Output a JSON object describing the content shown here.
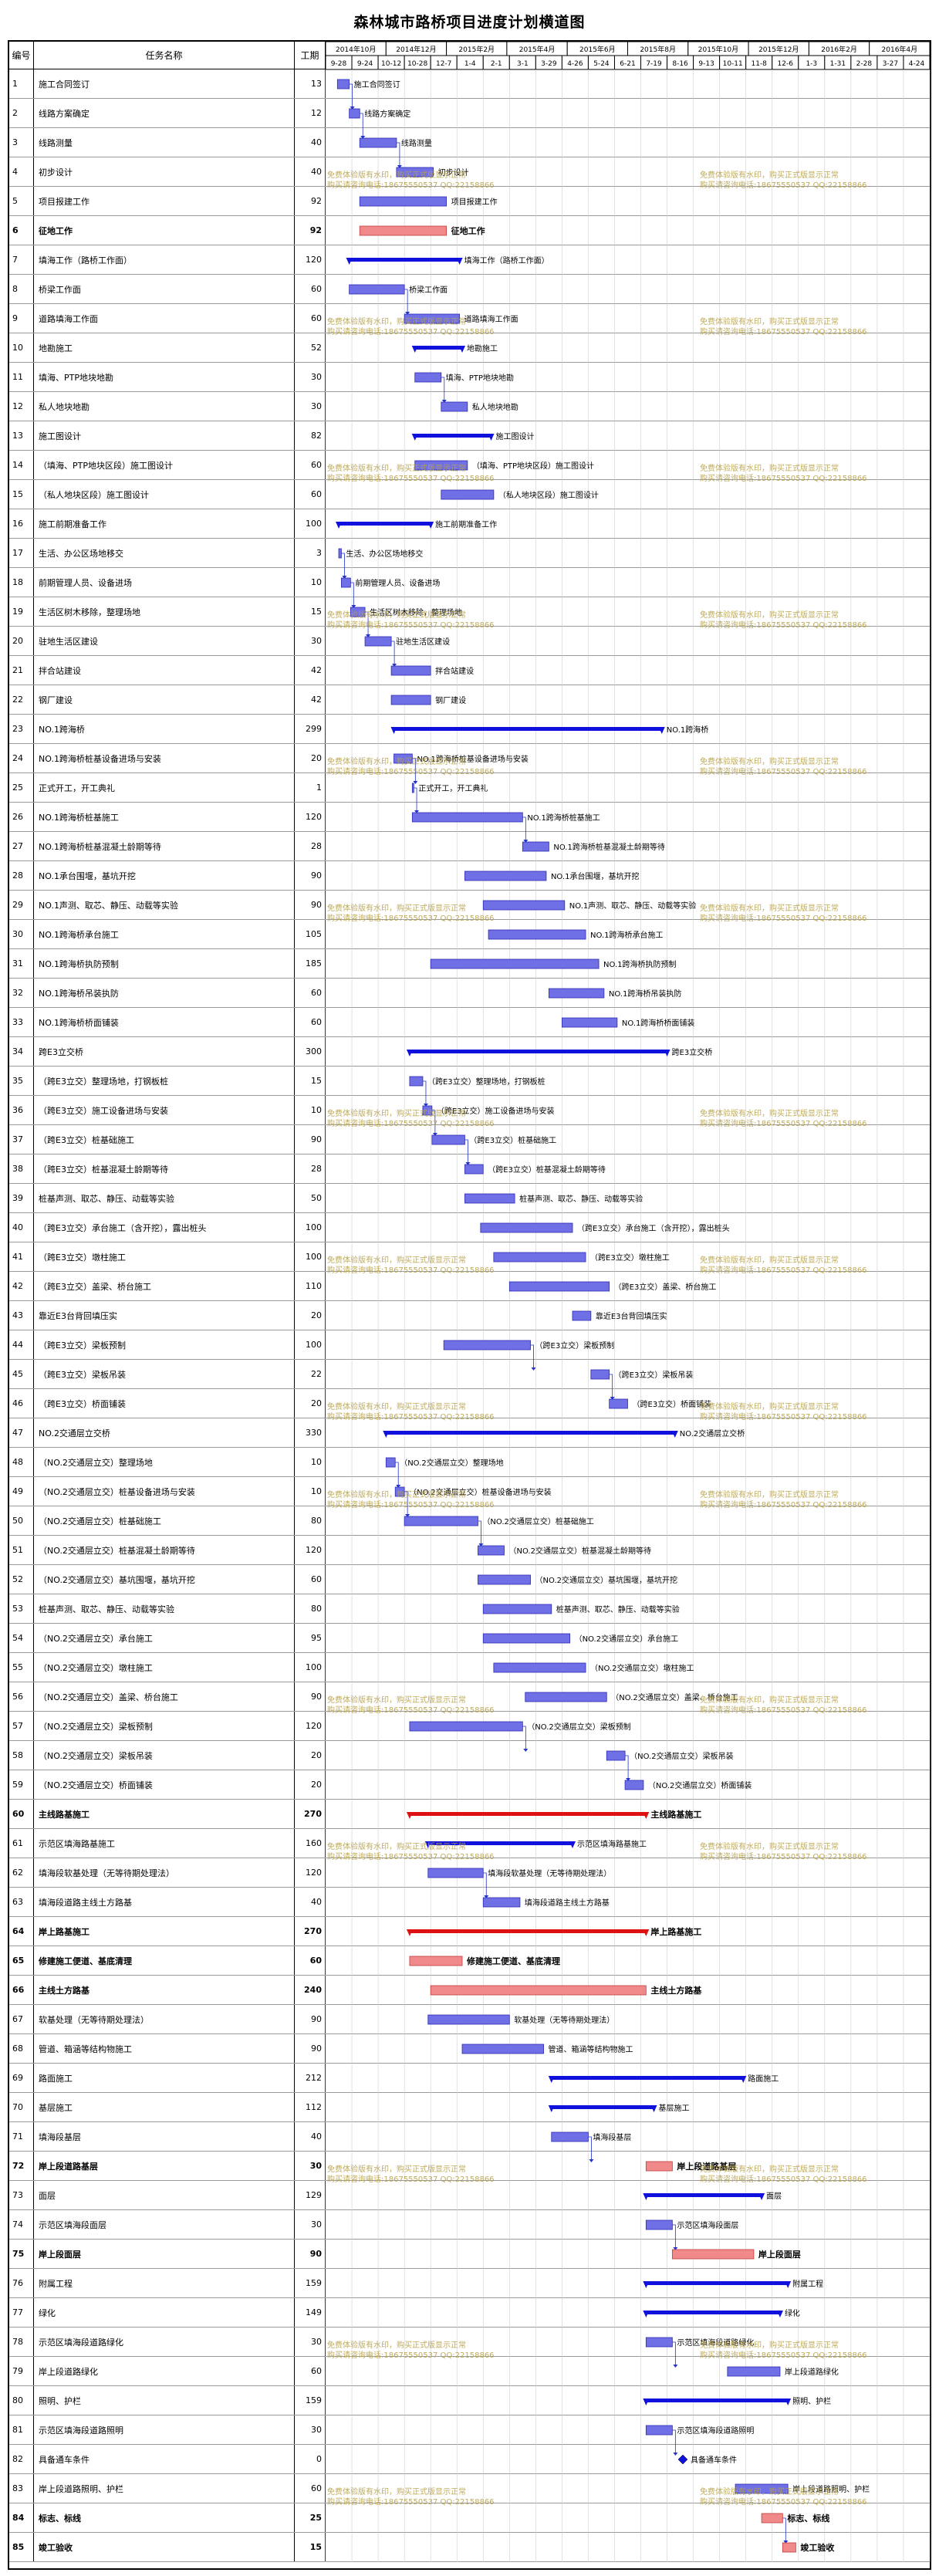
{
  "title": "森林城市路桥项目进度计划横道图",
  "headers": {
    "id": "编号",
    "name": "任务名称",
    "duration": "工期"
  },
  "months": [
    "2014年10月",
    "2014年12月",
    "2015年2月",
    "2015年4月",
    "2015年6月",
    "2015年8月",
    "2015年10月",
    "2015年12月",
    "2016年2月",
    "2016年4月"
  ],
  "weeks": [
    "9-28",
    "9-24",
    "10-12",
    "10-28",
    "12-7",
    "1-4",
    "2-1",
    "3-1",
    "3-29",
    "4-26",
    "5-24",
    "6-21",
    "7-19",
    "8-16",
    "9-13",
    "10-11",
    "11-8",
    "12-6",
    "1-3",
    "1-31",
    "2-28",
    "3-27",
    "4-24"
  ],
  "watermark_lines": [
    "免费体验版有水印，购买正式版显示正常",
    "购买请咨询电话:18675550537 QQ:22158866"
  ],
  "colors": {
    "normal": "#6f6fe6",
    "critical": "#f08a8a",
    "summary": "#1111dd",
    "summary_critical": "#dd1111",
    "link": "#2233cc"
  },
  "tasks": [
    {
      "id": "1",
      "name": "施工合同签订",
      "dur": "13",
      "s": 0.45,
      "e": 0.9,
      "label": "施工合同签订"
    },
    {
      "id": "2",
      "name": "线路方案确定",
      "dur": "12",
      "s": 0.9,
      "e": 1.3,
      "label": "线路方案确定"
    },
    {
      "id": "3",
      "name": "线路测量",
      "dur": "40",
      "s": 1.3,
      "e": 2.7,
      "label": "线路测量"
    },
    {
      "id": "4",
      "name": "初步设计",
      "dur": "40",
      "s": 2.7,
      "e": 4.1,
      "label": "初步设计"
    },
    {
      "id": "5",
      "name": "项目报建工作",
      "dur": "92",
      "s": 1.3,
      "e": 4.6,
      "label": "项目报建工作"
    },
    {
      "id": "6",
      "name": "征地工作",
      "dur": "92",
      "s": 1.3,
      "e": 4.6,
      "label": "征地工作",
      "bold": true,
      "crit": true
    },
    {
      "id": "7",
      "name": "填海工作（路桥工作面）",
      "dur": "120",
      "s": 0.9,
      "e": 5.1,
      "label": "填海工作（路桥工作面）",
      "summary": true
    },
    {
      "id": "8",
      "name": "桥梁工作面",
      "dur": "60",
      "s": 0.9,
      "e": 3.0,
      "label": "桥梁工作面"
    },
    {
      "id": "9",
      "name": "道路填海工作面",
      "dur": "60",
      "s": 3.0,
      "e": 5.1,
      "label": "道路填海工作面"
    },
    {
      "id": "10",
      "name": "地勘施工",
      "dur": "52",
      "s": 3.4,
      "e": 5.2,
      "label": "地勘施工",
      "summary": true
    },
    {
      "id": "11",
      "name": "填海、PTP地块地勘",
      "dur": "30",
      "s": 3.4,
      "e": 4.4,
      "label": "填海、PTP地块地勘"
    },
    {
      "id": "12",
      "name": "私人地块地勘",
      "dur": "30",
      "s": 4.4,
      "e": 5.4,
      "label": "私人地块地勘"
    },
    {
      "id": "13",
      "name": "施工图设计",
      "dur": "82",
      "s": 3.4,
      "e": 6.3,
      "label": "施工图设计",
      "summary": true
    },
    {
      "id": "14",
      "name": "（填海、PTP地块区段）施工图设计",
      "dur": "60",
      "s": 3.4,
      "e": 5.4,
      "label": "（填海、PTP地块区段）施工图设计"
    },
    {
      "id": "15",
      "name": "（私人地块区段）施工图设计",
      "dur": "60",
      "s": 4.4,
      "e": 6.4,
      "label": "（私人地块区段）施工图设计"
    },
    {
      "id": "16",
      "name": "施工前期准备工作",
      "dur": "100",
      "s": 0.5,
      "e": 4.0,
      "label": "施工前期准备工作",
      "summary": true
    },
    {
      "id": "17",
      "name": "生活、办公区场地移交",
      "dur": "3",
      "s": 0.5,
      "e": 0.6,
      "label": "生活、办公区场地移交"
    },
    {
      "id": "18",
      "name": "前期管理人员、设备进场",
      "dur": "10",
      "s": 0.6,
      "e": 0.95,
      "label": "前期管理人员、设备进场"
    },
    {
      "id": "19",
      "name": "生活区树木移除，整理场地",
      "dur": "15",
      "s": 0.95,
      "e": 1.5,
      "label": "生活区树木移除，整理场地"
    },
    {
      "id": "20",
      "name": "驻地生活区建设",
      "dur": "30",
      "s": 1.5,
      "e": 2.5,
      "label": "驻地生活区建设"
    },
    {
      "id": "21",
      "name": "拌合站建设",
      "dur": "42",
      "s": 2.5,
      "e": 4.0,
      "label": "拌合站建设"
    },
    {
      "id": "22",
      "name": "钢厂建设",
      "dur": "42",
      "s": 2.5,
      "e": 4.0,
      "label": "钢厂建设"
    },
    {
      "id": "23",
      "name": "NO.1跨海桥",
      "dur": "299",
      "s": 2.6,
      "e": 12.8,
      "label": "NO.1跨海桥",
      "summary": true
    },
    {
      "id": "24",
      "name": "NO.1跨海桥桩基设备进场与安装",
      "dur": "20",
      "s": 2.6,
      "e": 3.3,
      "label": "NO.1跨海桥桩基设备进场与安装"
    },
    {
      "id": "25",
      "name": "正式开工，开工典礼",
      "dur": "1",
      "s": 3.3,
      "e": 3.35,
      "label": "正式开工，开工典礼"
    },
    {
      "id": "26",
      "name": "NO.1跨海桥桩基施工",
      "dur": "120",
      "s": 3.3,
      "e": 7.5,
      "label": "NO.1跨海桥桩基施工"
    },
    {
      "id": "27",
      "name": "NO.1跨海桥桩基混凝土龄期等待",
      "dur": "28",
      "s": 7.5,
      "e": 8.5,
      "label": "NO.1跨海桥桩基混凝土龄期等待"
    },
    {
      "id": "28",
      "name": "NO.1承台围堰，基坑开挖",
      "dur": "90",
      "s": 5.3,
      "e": 8.4,
      "label": "NO.1承台围堰，基坑开挖"
    },
    {
      "id": "29",
      "name": "NO.1声测、取芯、静压、动载等实验",
      "dur": "90",
      "s": 6.0,
      "e": 9.1,
      "label": "NO.1声测、取芯、静压、动载等实验"
    },
    {
      "id": "30",
      "name": "NO.1跨海桥承台施工",
      "dur": "105",
      "s": 6.2,
      "e": 9.9,
      "label": "NO.1跨海桥承台施工"
    },
    {
      "id": "31",
      "name": "NO.1跨海桥执防预制",
      "dur": "185",
      "s": 4.0,
      "e": 10.4,
      "label": "NO.1跨海桥执防预制"
    },
    {
      "id": "32",
      "name": "NO.1跨海桥吊装执防",
      "dur": "60",
      "s": 8.5,
      "e": 10.6,
      "label": "NO.1跨海桥吊装执防"
    },
    {
      "id": "33",
      "name": "NO.1跨海桥桥面铺装",
      "dur": "60",
      "s": 9.0,
      "e": 11.1,
      "label": "NO.1跨海桥桥面铺装"
    },
    {
      "id": "34",
      "name": "跨E3立交桥",
      "dur": "300",
      "s": 3.2,
      "e": 13.0,
      "label": "跨E3立交桥",
      "summary": true
    },
    {
      "id": "35",
      "name": "（跨E3立交）整理场地，打钢板桩",
      "dur": "15",
      "s": 3.2,
      "e": 3.7,
      "label": "（跨E3立交）整理场地，打钢板桩"
    },
    {
      "id": "36",
      "name": "（跨E3立交）施工设备进场与安装",
      "dur": "10",
      "s": 3.7,
      "e": 4.05,
      "label": "（跨E3立交）施工设备进场与安装"
    },
    {
      "id": "37",
      "name": "（跨E3立交）桩基础施工",
      "dur": "90",
      "s": 4.05,
      "e": 5.3,
      "label": "（跨E3立交）桩基础施工"
    },
    {
      "id": "38",
      "name": "（跨E3立交）桩基混凝土龄期等待",
      "dur": "28",
      "s": 5.3,
      "e": 6.0,
      "label": "（跨E3立交）桩基混凝土龄期等待"
    },
    {
      "id": "39",
      "name": "桩基声测、取芯、静压、动载等实验",
      "dur": "50",
      "s": 5.3,
      "e": 7.2,
      "label": "桩基声测、取芯、静压、动载等实验"
    },
    {
      "id": "40",
      "name": "（跨E3立交）承台施工（含开挖），露出桩头",
      "dur": "100",
      "s": 5.9,
      "e": 9.4,
      "label": "（跨E3立交）承台施工（含开挖），露出桩头"
    },
    {
      "id": "41",
      "name": "（跨E3立交）墩柱施工",
      "dur": "100",
      "s": 6.4,
      "e": 9.9,
      "label": "（跨E3立交）墩柱施工"
    },
    {
      "id": "42",
      "name": "（跨E3立交）盖梁、桥台施工",
      "dur": "110",
      "s": 7.0,
      "e": 10.8,
      "label": "（跨E3立交）盖梁、桥台施工"
    },
    {
      "id": "43",
      "name": "靠近E3台背回填压实",
      "dur": "20",
      "s": 9.4,
      "e": 10.1,
      "label": "靠近E3台背回填压实"
    },
    {
      "id": "44",
      "name": "（跨E3立交）梁板预制",
      "dur": "100",
      "s": 4.5,
      "e": 7.8,
      "label": "（跨E3立交）梁板预制"
    },
    {
      "id": "45",
      "name": "（跨E3立交）梁板吊装",
      "dur": "22",
      "s": 10.1,
      "e": 10.8,
      "label": "（跨E3立交）梁板吊装"
    },
    {
      "id": "46",
      "name": "（跨E3立交）桥面铺装",
      "dur": "20",
      "s": 10.8,
      "e": 11.5,
      "label": "（跨E3立交）桥面铺装"
    },
    {
      "id": "47",
      "name": "NO.2交通层立交桥",
      "dur": "330",
      "s": 2.3,
      "e": 13.3,
      "label": "NO.2交通层立交桥",
      "summary": true
    },
    {
      "id": "48",
      "name": "（NO.2交通层立交）整理场地",
      "dur": "10",
      "s": 2.3,
      "e": 2.65,
      "label": "（NO.2交通层立交）整理场地"
    },
    {
      "id": "49",
      "name": "（NO.2交通层立交）桩基设备进场与安装",
      "dur": "10",
      "s": 2.65,
      "e": 3.0,
      "label": "（NO.2交通层立交）桩基设备进场与安装"
    },
    {
      "id": "50",
      "name": "（NO.2交通层立交）桩基础施工",
      "dur": "80",
      "s": 3.0,
      "e": 5.8,
      "label": "（NO.2交通层立交）桩基础施工"
    },
    {
      "id": "51",
      "name": "（NO.2交通层立交）桩基混凝土龄期等待",
      "dur": "120",
      "s": 5.8,
      "e": 6.8,
      "label": "（NO.2交通层立交）桩基混凝土龄期等待"
    },
    {
      "id": "52",
      "name": "（NO.2交通层立交）基坑围堰，基坑开挖",
      "dur": "60",
      "s": 5.8,
      "e": 7.8,
      "label": "（NO.2交通层立交）基坑围堰，基坑开挖"
    },
    {
      "id": "53",
      "name": "桩基声测、取芯、静压、动载等实验",
      "dur": "80",
      "s": 6.0,
      "e": 8.6,
      "label": "桩基声测、取芯、静压、动载等实验"
    },
    {
      "id": "54",
      "name": "（NO.2交通层立交）承台施工",
      "dur": "95",
      "s": 6.0,
      "e": 9.3,
      "label": "（NO.2交通层立交）承台施工"
    },
    {
      "id": "55",
      "name": "（NO.2交通层立交）墩柱施工",
      "dur": "100",
      "s": 6.4,
      "e": 9.9,
      "label": "（NO.2交通层立交）墩柱施工"
    },
    {
      "id": "56",
      "name": "（NO.2交通层立交）盖梁、桥台施工",
      "dur": "90",
      "s": 7.6,
      "e": 10.7,
      "label": "（NO.2交通层立交）盖梁、桥台施工"
    },
    {
      "id": "57",
      "name": "（NO.2交通层立交）梁板预制",
      "dur": "120",
      "s": 3.2,
      "e": 7.5,
      "label": "（NO.2交通层立交）梁板预制"
    },
    {
      "id": "58",
      "name": "（NO.2交通层立交）梁板吊装",
      "dur": "20",
      "s": 10.7,
      "e": 11.4,
      "label": "（NO.2交通层立交）梁板吊装"
    },
    {
      "id": "59",
      "name": "（NO.2交通层立交）桥面铺装",
      "dur": "20",
      "s": 11.4,
      "e": 12.1,
      "label": "（NO.2交通层立交）桥面铺装"
    },
    {
      "id": "60",
      "name": "主线路基施工",
      "dur": "270",
      "s": 3.2,
      "e": 12.2,
      "label": "主线路基施工",
      "bold": true,
      "summary": true,
      "crit": true
    },
    {
      "id": "61",
      "name": "示范区填海路基施工",
      "dur": "160",
      "s": 3.9,
      "e": 9.4,
      "label": "示范区填海路基施工",
      "summary": true
    },
    {
      "id": "62",
      "name": "填海段软基处理（无等待期处理法）",
      "dur": "120",
      "s": 3.9,
      "e": 6.0,
      "label": "填海段软基处理（无等待期处理法）"
    },
    {
      "id": "63",
      "name": "填海段道路主线土方路基",
      "dur": "40",
      "s": 6.0,
      "e": 7.4,
      "label": "填海段道路主线土方路基"
    },
    {
      "id": "64",
      "name": "岸上路基施工",
      "dur": "270",
      "s": 3.2,
      "e": 12.2,
      "label": "岸上路基施工",
      "bold": true,
      "summary": true,
      "crit": true
    },
    {
      "id": "65",
      "name": "修建施工便道、基底清理",
      "dur": "60",
      "s": 3.2,
      "e": 5.2,
      "label": "修建施工便道、基底清理",
      "bold": true,
      "crit": true
    },
    {
      "id": "66",
      "name": "主线土方路基",
      "dur": "240",
      "s": 4.0,
      "e": 12.2,
      "label": "主线土方路基",
      "bold": true,
      "crit": true
    },
    {
      "id": "67",
      "name": "软基处理（无等待期处理法）",
      "dur": "90",
      "s": 3.9,
      "e": 7.0,
      "label": "软基处理（无等待期处理法）"
    },
    {
      "id": "68",
      "name": "管道、箱涵等结构物施工",
      "dur": "90",
      "s": 5.2,
      "e": 8.3,
      "label": "管道、箱涵等结构物施工"
    },
    {
      "id": "69",
      "name": "路面施工",
      "dur": "212",
      "s": 8.6,
      "e": 15.9,
      "label": "路面施工",
      "summary": true
    },
    {
      "id": "70",
      "name": "基层施工",
      "dur": "112",
      "s": 8.6,
      "e": 12.5,
      "label": "基层施工",
      "summary": true
    },
    {
      "id": "71",
      "name": "填海段基层",
      "dur": "40",
      "s": 8.6,
      "e": 10.0,
      "label": "填海段基层"
    },
    {
      "id": "72",
      "name": "岸上段道路基层",
      "dur": "30",
      "s": 12.2,
      "e": 13.2,
      "label": "岸上段道路基层",
      "bold": true,
      "crit": true
    },
    {
      "id": "73",
      "name": "面层",
      "dur": "129",
      "s": 12.2,
      "e": 16.6,
      "label": "面层",
      "summary": true
    },
    {
      "id": "74",
      "name": "示范区填海段面层",
      "dur": "30",
      "s": 12.2,
      "e": 13.2,
      "label": "示范区填海段面层"
    },
    {
      "id": "75",
      "name": "岸上段面层",
      "dur": "90",
      "s": 13.2,
      "e": 16.3,
      "label": "岸上段面层",
      "bold": true,
      "crit": true
    },
    {
      "id": "76",
      "name": "附属工程",
      "dur": "159",
      "s": 12.2,
      "e": 17.6,
      "label": "附属工程",
      "summary": true
    },
    {
      "id": "77",
      "name": "绿化",
      "dur": "149",
      "s": 12.2,
      "e": 17.3,
      "label": "绿化",
      "summary": true
    },
    {
      "id": "78",
      "name": "示范区填海段道路绿化",
      "dur": "30",
      "s": 12.2,
      "e": 13.2,
      "label": "示范区填海段道路绿化"
    },
    {
      "id": "79",
      "name": "岸上段道路绿化",
      "dur": "60",
      "s": 15.3,
      "e": 17.3,
      "label": "岸上段道路绿化"
    },
    {
      "id": "80",
      "name": "照明、护栏",
      "dur": "159",
      "s": 12.2,
      "e": 17.6,
      "label": "照明、护栏",
      "summary": true
    },
    {
      "id": "81",
      "name": "示范区填海段道路照明",
      "dur": "30",
      "s": 12.2,
      "e": 13.2,
      "label": "示范区填海段道路照明"
    },
    {
      "id": "82",
      "name": "具备通车条件",
      "dur": "0",
      "s": 13.6,
      "e": 13.6,
      "label": "具备通车条件",
      "milestone": true
    },
    {
      "id": "83",
      "name": "岸上段道路照明、护栏",
      "dur": "60",
      "s": 15.6,
      "e": 17.6,
      "label": "岸上段道路照明、护栏"
    },
    {
      "id": "84",
      "name": "标志、标线",
      "dur": "25",
      "s": 16.6,
      "e": 17.4,
      "label": "标志、标线",
      "bold": true,
      "crit": true
    },
    {
      "id": "85",
      "name": "竣工验收",
      "dur": "15",
      "s": 17.4,
      "e": 17.9,
      "label": "竣工验收",
      "bold": true,
      "crit": true
    }
  ]
}
